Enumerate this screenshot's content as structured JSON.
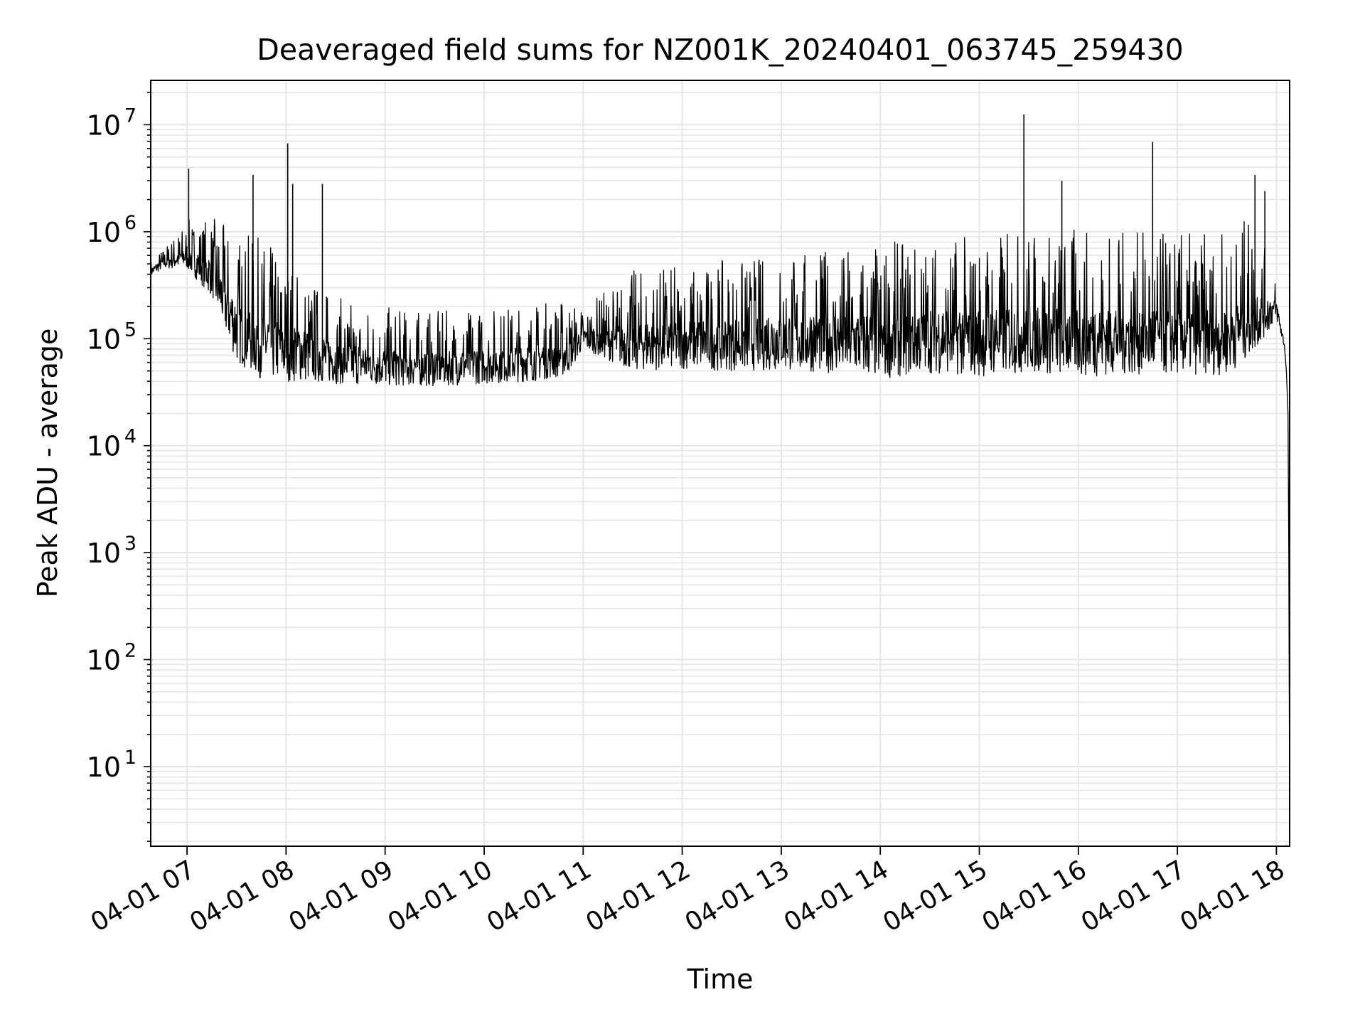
{
  "chart_data": {
    "type": "line",
    "title": "Deaveraged field sums for NZ001K_20240401_063745_259430",
    "xlabel": "Time",
    "ylabel": "Peak ADU - average",
    "yscale": "log",
    "ylim": [
      1.8,
      26000000
    ],
    "xlim": [
      "2024-04-01 06:38",
      "2024-04-01 18:08"
    ],
    "grid": true,
    "line_color": "#000000",
    "grid_color": "#e6e6e6",
    "x_ticks": [
      "2024-04-01 07:00",
      "2024-04-01 08:00",
      "2024-04-01 09:00",
      "2024-04-01 10:00",
      "2024-04-01 11:00",
      "2024-04-01 12:00",
      "2024-04-01 13:00",
      "2024-04-01 14:00",
      "2024-04-01 15:00",
      "2024-04-01 16:00",
      "2024-04-01 17:00",
      "2024-04-01 18:00"
    ],
    "x_tick_labels": [
      "04-01 07",
      "04-01 08",
      "04-01 09",
      "04-01 10",
      "04-01 11",
      "04-01 12",
      "04-01 13",
      "04-01 14",
      "04-01 15",
      "04-01 16",
      "04-01 17",
      "04-01 18"
    ],
    "y_ticks": [
      10,
      100,
      1000,
      10000,
      100000,
      1000000,
      10000000
    ],
    "y_tick_bases": [
      "10",
      "10",
      "10",
      "10",
      "10",
      "10",
      "10"
    ],
    "y_tick_exponents": [
      "1",
      "2",
      "3",
      "4",
      "5",
      "6",
      "7"
    ],
    "series": [
      {
        "envelope": {
          "x": [
            "2024-04-01 06:38",
            "2024-04-01 06:45",
            "2024-04-01 07:00",
            "2024-04-01 07:15",
            "2024-04-01 07:30",
            "2024-04-01 07:45",
            "2024-04-01 08:00",
            "2024-04-01 08:30",
            "2024-04-01 09:00",
            "2024-04-01 09:30",
            "2024-04-01 10:00",
            "2024-04-01 10:30",
            "2024-04-01 10:50",
            "2024-04-01 11:00",
            "2024-04-01 11:30",
            "2024-04-01 12:00",
            "2024-04-01 12:30",
            "2024-04-01 13:00",
            "2024-04-01 13:30",
            "2024-04-01 14:00",
            "2024-04-01 14:30",
            "2024-04-01 15:00",
            "2024-04-01 15:30",
            "2024-04-01 16:00",
            "2024-04-01 16:30",
            "2024-04-01 17:00",
            "2024-04-01 17:30",
            "2024-04-01 17:45",
            "2024-04-01 18:00",
            "2024-04-01 18:05"
          ],
          "low": [
            380000,
            450000,
            450000,
            250000,
            60000,
            42000,
            40000,
            38000,
            36000,
            36000,
            38000,
            40000,
            45000,
            80000,
            50000,
            52000,
            50000,
            50000,
            48000,
            42000,
            48000,
            44000,
            48000,
            44000,
            46000,
            46000,
            46000,
            70000,
            150000,
            80000
          ],
          "high": [
            550000,
            700000,
            1300000,
            1400000,
            1000000,
            900000,
            600000,
            250000,
            200000,
            180000,
            200000,
            220000,
            250000,
            200000,
            450000,
            500000,
            550000,
            650000,
            700000,
            800000,
            900000,
            1000000,
            1100000,
            1100000,
            1000000,
            1000000,
            1000000,
            1500000,
            350000,
            100000
          ]
        },
        "spikes": [
          {
            "x": "2024-04-01 07:01",
            "y": 3900000
          },
          {
            "x": "2024-04-01 07:40",
            "y": 3400000
          },
          {
            "x": "2024-04-01 08:01",
            "y": 6700000
          },
          {
            "x": "2024-04-01 08:04",
            "y": 2800000
          },
          {
            "x": "2024-04-01 08:22",
            "y": 2800000
          },
          {
            "x": "2024-04-01 15:27",
            "y": 12500000
          },
          {
            "x": "2024-04-01 15:50",
            "y": 3000000
          },
          {
            "x": "2024-04-01 16:45",
            "y": 6900000
          },
          {
            "x": "2024-04-01 17:47",
            "y": 3400000
          },
          {
            "x": "2024-04-01 17:53",
            "y": 2400000
          }
        ],
        "tail": {
          "x": [
            "2024-04-01 18:05",
            "2024-04-01 18:06",
            "2024-04-01 18:07",
            "2024-04-01 18:07:30",
            "2024-04-01 18:08"
          ],
          "y": [
            80000,
            50000,
            20000,
            1000,
            4
          ]
        }
      }
    ]
  }
}
